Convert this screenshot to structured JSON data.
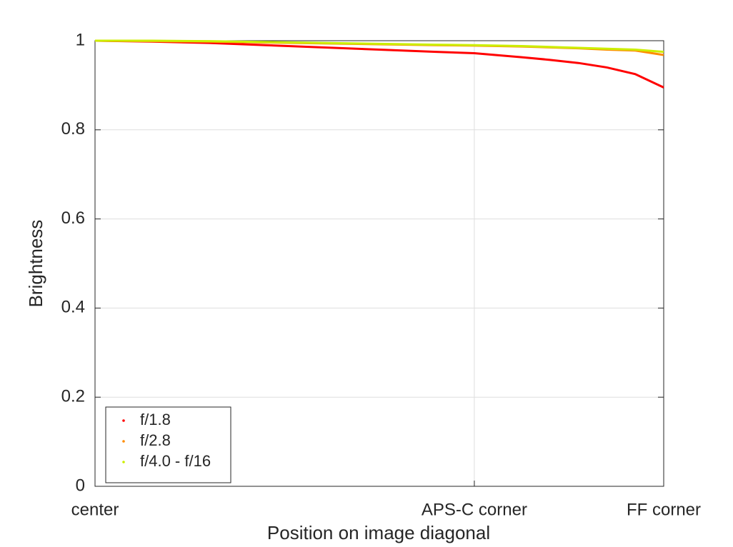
{
  "chart_data": {
    "type": "line",
    "xlabel": "Position on image diagonal",
    "ylabel": "Brightness",
    "x": [
      0,
      0.1,
      0.2,
      0.3,
      0.4,
      0.5,
      0.6,
      0.667,
      0.75,
      0.8,
      0.85,
      0.9,
      0.95,
      1.0
    ],
    "series": [
      {
        "name": "f/1.8",
        "color": "#ff0000",
        "values": [
          1.0,
          0.998,
          0.995,
          0.99,
          0.985,
          0.98,
          0.975,
          0.972,
          0.963,
          0.957,
          0.95,
          0.94,
          0.925,
          0.895
        ]
      },
      {
        "name": "f/2.8",
        "color": "#ff8c00",
        "values": [
          1.0,
          0.999,
          0.998,
          0.996,
          0.994,
          0.992,
          0.99,
          0.989,
          0.987,
          0.985,
          0.983,
          0.98,
          0.978,
          0.968
        ]
      },
      {
        "name": "f/4.0 - f/16",
        "color": "#ccee00",
        "values": [
          1.0,
          1.0,
          0.999,
          0.997,
          0.995,
          0.993,
          0.991,
          0.99,
          0.988,
          0.986,
          0.984,
          0.982,
          0.98,
          0.975
        ]
      }
    ],
    "xlim": [
      0,
      1
    ],
    "xticks": [
      {
        "value": 0,
        "label": "center"
      },
      {
        "value": 0.667,
        "label": "APS-C corner"
      },
      {
        "value": 1,
        "label": "FF corner"
      }
    ],
    "ylim": [
      0,
      1
    ],
    "yticks": [
      0,
      0.2,
      0.4,
      0.6,
      0.8,
      1
    ],
    "grid": true,
    "legend": "lower left"
  }
}
